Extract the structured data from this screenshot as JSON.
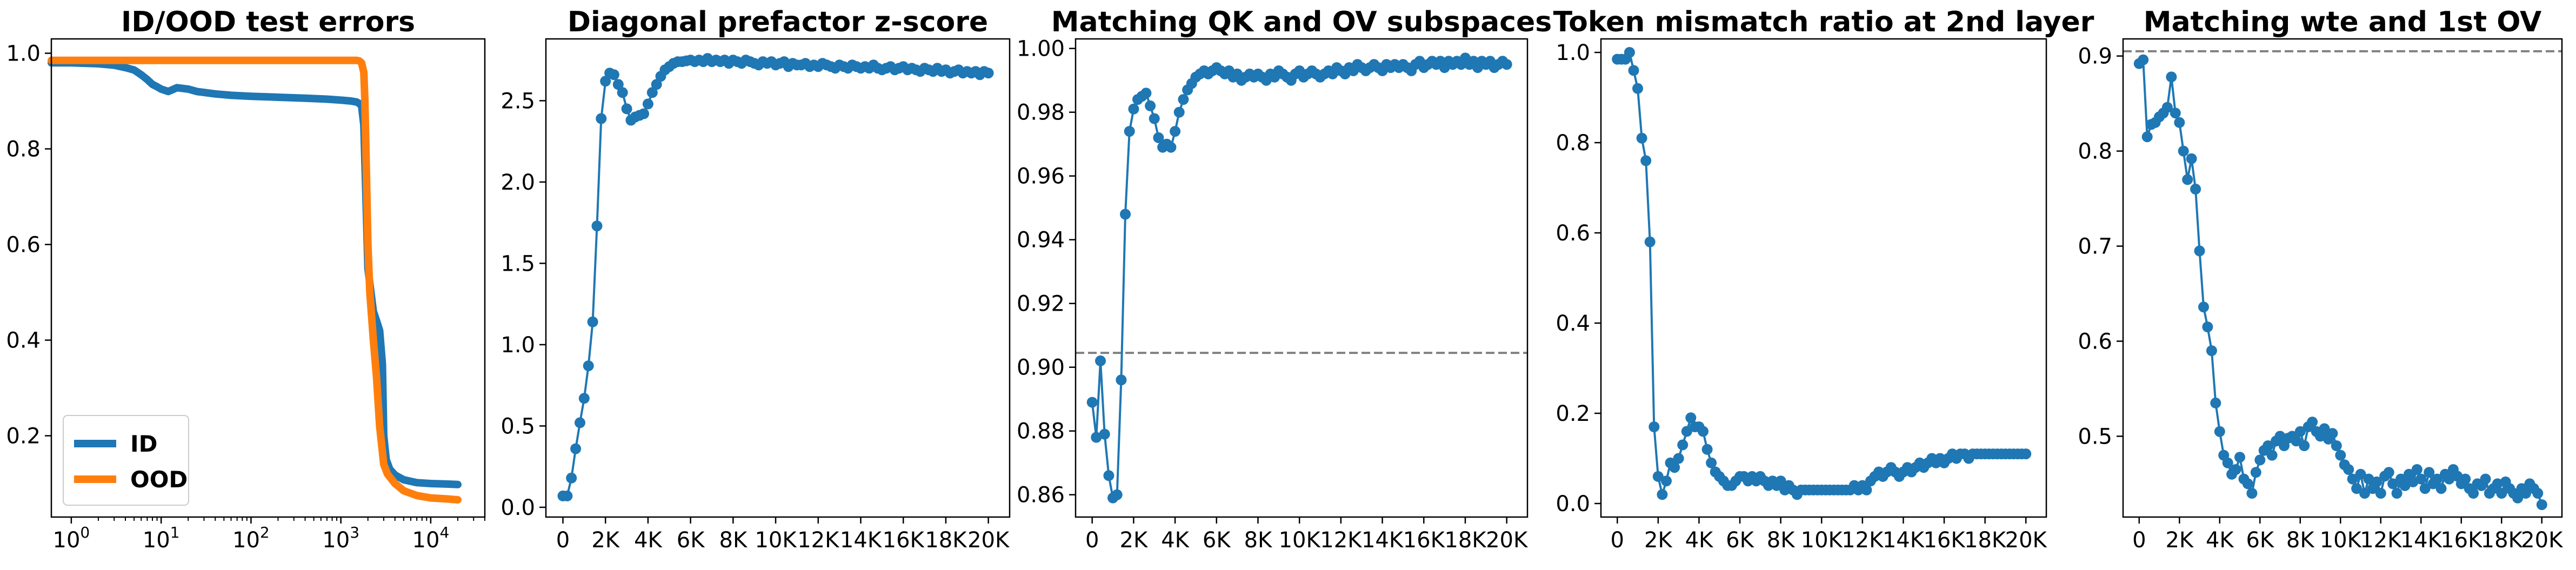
{
  "figure": {
    "colors": {
      "blue": "#1f77b4",
      "orange": "#ff7f0e",
      "refline": "#808080"
    }
  },
  "chart_data": [
    {
      "type": "line",
      "title": "ID/OOD test errors",
      "xscale": "log",
      "xlim": [
        0.6,
        40000
      ],
      "ylim": [
        0.03,
        1.03
      ],
      "xticks": [
        {
          "value": 1,
          "base": "10",
          "exp": "0"
        },
        {
          "value": 10,
          "base": "10",
          "exp": "1"
        },
        {
          "value": 100,
          "base": "10",
          "exp": "2"
        },
        {
          "value": 1000,
          "base": "10",
          "exp": "3"
        },
        {
          "value": 10000,
          "base": "10",
          "exp": "4"
        }
      ],
      "yticks": [
        {
          "value": 0.2,
          "label": "0.2"
        },
        {
          "value": 0.4,
          "label": "0.4"
        },
        {
          "value": 0.6,
          "label": "0.6"
        },
        {
          "value": 0.8,
          "label": "0.8"
        },
        {
          "value": 1.0,
          "label": "1.0"
        }
      ],
      "legend": {
        "placement": "lower-left"
      },
      "series": [
        {
          "name": "ID",
          "color": "#1f77b4",
          "x": [
            0.6,
            1,
            2,
            3,
            4,
            5,
            6,
            7,
            8,
            9,
            10,
            12,
            15,
            20,
            25,
            30,
            40,
            60,
            100,
            200,
            400,
            700,
            1000,
            1300,
            1500,
            1600,
            1700,
            1800,
            1900,
            2000,
            2300,
            2500,
            2700,
            2900,
            3000,
            3200,
            3500,
            4000,
            5000,
            7000,
            10000,
            15000,
            20000
          ],
          "y": [
            0.98,
            0.98,
            0.978,
            0.975,
            0.97,
            0.965,
            0.955,
            0.945,
            0.935,
            0.93,
            0.925,
            0.92,
            0.928,
            0.925,
            0.92,
            0.918,
            0.915,
            0.912,
            0.91,
            0.908,
            0.906,
            0.904,
            0.902,
            0.9,
            0.898,
            0.895,
            0.89,
            0.85,
            0.7,
            0.55,
            0.46,
            0.44,
            0.42,
            0.35,
            0.2,
            0.15,
            0.13,
            0.118,
            0.108,
            0.102,
            0.1,
            0.099,
            0.098
          ]
        },
        {
          "name": "OOD",
          "color": "#ff7f0e",
          "x": [
            0.6,
            1,
            10,
            100,
            500,
            1000,
            1300,
            1500,
            1600,
            1700,
            1800,
            1850,
            1900,
            2000,
            2100,
            2300,
            2500,
            2700,
            3000,
            3300,
            4000,
            5000,
            7000,
            10000,
            15000,
            20000
          ],
          "y": [
            0.985,
            0.985,
            0.985,
            0.985,
            0.985,
            0.985,
            0.985,
            0.985,
            0.984,
            0.98,
            0.96,
            0.9,
            0.8,
            0.6,
            0.5,
            0.4,
            0.32,
            0.22,
            0.14,
            0.12,
            0.1,
            0.085,
            0.075,
            0.07,
            0.068,
            0.066
          ]
        }
      ]
    },
    {
      "type": "line",
      "title": "Diagonal prefactor z-score",
      "xlim": [
        -800,
        21000
      ],
      "ylim": [
        -0.06,
        2.88
      ],
      "xticks": [
        {
          "value": 0,
          "label": "0"
        },
        {
          "value": 2000,
          "label": "2K"
        },
        {
          "value": 4000,
          "label": "4K"
        },
        {
          "value": 6000,
          "label": "6K"
        },
        {
          "value": 8000,
          "label": "8K"
        },
        {
          "value": 10000,
          "label": "10K"
        },
        {
          "value": 12000,
          "label": "12K"
        },
        {
          "value": 14000,
          "label": "14K"
        },
        {
          "value": 16000,
          "label": "16K"
        },
        {
          "value": 18000,
          "label": "18K"
        },
        {
          "value": 20000,
          "label": "20K"
        }
      ],
      "yticks": [
        {
          "value": 0.0,
          "label": "0.0"
        },
        {
          "value": 0.5,
          "label": "0.5"
        },
        {
          "value": 1.0,
          "label": "1.0"
        },
        {
          "value": 1.5,
          "label": "1.5"
        },
        {
          "value": 2.0,
          "label": "2.0"
        },
        {
          "value": 2.5,
          "label": "2.5"
        }
      ],
      "series": [
        {
          "color": "#1f77b4",
          "markers": true,
          "x_start": 0,
          "x_step": 200,
          "y": [
            0.07,
            0.07,
            0.18,
            0.36,
            0.52,
            0.67,
            0.87,
            1.14,
            1.73,
            2.39,
            2.62,
            2.67,
            2.66,
            2.6,
            2.55,
            2.45,
            2.38,
            2.4,
            2.41,
            2.42,
            2.48,
            2.55,
            2.6,
            2.65,
            2.69,
            2.71,
            2.73,
            2.74,
            2.74,
            2.745,
            2.75,
            2.74,
            2.75,
            2.74,
            2.76,
            2.74,
            2.75,
            2.74,
            2.75,
            2.73,
            2.75,
            2.74,
            2.73,
            2.75,
            2.74,
            2.73,
            2.72,
            2.74,
            2.73,
            2.74,
            2.72,
            2.73,
            2.74,
            2.71,
            2.73,
            2.72,
            2.72,
            2.73,
            2.71,
            2.72,
            2.71,
            2.73,
            2.72,
            2.71,
            2.7,
            2.72,
            2.71,
            2.7,
            2.72,
            2.71,
            2.7,
            2.71,
            2.7,
            2.72,
            2.7,
            2.69,
            2.7,
            2.71,
            2.69,
            2.7,
            2.71,
            2.69,
            2.7,
            2.69,
            2.68,
            2.7,
            2.69,
            2.68,
            2.7,
            2.68,
            2.69,
            2.67,
            2.68,
            2.69,
            2.67,
            2.68,
            2.67,
            2.68,
            2.66,
            2.68,
            2.67
          ]
        }
      ]
    },
    {
      "type": "line",
      "title": "Matching QK and OV subspaces",
      "xlim": [
        -800,
        21000
      ],
      "ylim": [
        0.853,
        1.003
      ],
      "reference_line": 0.9045,
      "xticks": [
        {
          "value": 0,
          "label": "0"
        },
        {
          "value": 2000,
          "label": "2K"
        },
        {
          "value": 4000,
          "label": "4K"
        },
        {
          "value": 6000,
          "label": "6K"
        },
        {
          "value": 8000,
          "label": "8K"
        },
        {
          "value": 10000,
          "label": "10K"
        },
        {
          "value": 12000,
          "label": "12K"
        },
        {
          "value": 14000,
          "label": "14K"
        },
        {
          "value": 16000,
          "label": "16K"
        },
        {
          "value": 18000,
          "label": "18K"
        },
        {
          "value": 20000,
          "label": "20K"
        }
      ],
      "yticks": [
        {
          "value": 0.86,
          "label": "0.86"
        },
        {
          "value": 0.88,
          "label": "0.88"
        },
        {
          "value": 0.9,
          "label": "0.90"
        },
        {
          "value": 0.92,
          "label": "0.92"
        },
        {
          "value": 0.94,
          "label": "0.94"
        },
        {
          "value": 0.96,
          "label": "0.96"
        },
        {
          "value": 0.98,
          "label": "0.98"
        },
        {
          "value": 1.0,
          "label": "1.00"
        }
      ],
      "series": [
        {
          "color": "#1f77b4",
          "markers": true,
          "x_start": 0,
          "x_step": 200,
          "y": [
            0.889,
            0.878,
            0.902,
            0.879,
            0.866,
            0.859,
            0.86,
            0.896,
            0.948,
            0.974,
            0.981,
            0.984,
            0.985,
            0.986,
            0.982,
            0.978,
            0.972,
            0.969,
            0.97,
            0.969,
            0.974,
            0.98,
            0.984,
            0.987,
            0.989,
            0.991,
            0.992,
            0.993,
            0.992,
            0.993,
            0.994,
            0.993,
            0.992,
            0.993,
            0.991,
            0.992,
            0.99,
            0.991,
            0.992,
            0.991,
            0.992,
            0.991,
            0.99,
            0.992,
            0.991,
            0.993,
            0.992,
            0.991,
            0.99,
            0.992,
            0.993,
            0.991,
            0.992,
            0.993,
            0.992,
            0.991,
            0.992,
            0.993,
            0.992,
            0.994,
            0.993,
            0.992,
            0.994,
            0.993,
            0.995,
            0.994,
            0.993,
            0.994,
            0.995,
            0.994,
            0.993,
            0.995,
            0.994,
            0.995,
            0.994,
            0.995,
            0.994,
            0.993,
            0.995,
            0.996,
            0.994,
            0.995,
            0.996,
            0.995,
            0.996,
            0.994,
            0.996,
            0.995,
            0.996,
            0.995,
            0.997,
            0.995,
            0.996,
            0.994,
            0.996,
            0.995,
            0.996,
            0.994,
            0.995,
            0.996,
            0.995
          ]
        }
      ]
    },
    {
      "type": "line",
      "title": "Token mismatch ratio at 2nd layer",
      "xlim": [
        -800,
        21000
      ],
      "ylim": [
        -0.03,
        1.03
      ],
      "xticks": [
        {
          "value": 0,
          "label": "0"
        },
        {
          "value": 2000,
          "label": "2K"
        },
        {
          "value": 4000,
          "label": "4K"
        },
        {
          "value": 6000,
          "label": "6K"
        },
        {
          "value": 8000,
          "label": "8K"
        },
        {
          "value": 10000,
          "label": "10K"
        },
        {
          "value": 12000,
          "label": "12K"
        },
        {
          "value": 14000,
          "label": "14K"
        },
        {
          "value": 16000,
          "label": "16K"
        },
        {
          "value": 18000,
          "label": "18K"
        },
        {
          "value": 20000,
          "label": "20K"
        }
      ],
      "yticks": [
        {
          "value": 0.0,
          "label": "0.0"
        },
        {
          "value": 0.2,
          "label": "0.2"
        },
        {
          "value": 0.4,
          "label": "0.4"
        },
        {
          "value": 0.6,
          "label": "0.6"
        },
        {
          "value": 0.8,
          "label": "0.8"
        },
        {
          "value": 1.0,
          "label": "1.0"
        }
      ],
      "series": [
        {
          "color": "#1f77b4",
          "markers": true,
          "x_start": 0,
          "x_step": 200,
          "y": [
            0.985,
            0.985,
            0.985,
            1.0,
            0.96,
            0.92,
            0.81,
            0.76,
            0.58,
            0.17,
            0.06,
            0.02,
            0.05,
            0.09,
            0.08,
            0.1,
            0.13,
            0.16,
            0.19,
            0.17,
            0.17,
            0.16,
            0.12,
            0.09,
            0.07,
            0.06,
            0.05,
            0.04,
            0.04,
            0.05,
            0.06,
            0.06,
            0.05,
            0.06,
            0.05,
            0.06,
            0.05,
            0.04,
            0.05,
            0.04,
            0.05,
            0.03,
            0.04,
            0.03,
            0.02,
            0.03,
            0.03,
            0.03,
            0.03,
            0.03,
            0.03,
            0.03,
            0.03,
            0.03,
            0.03,
            0.03,
            0.03,
            0.03,
            0.04,
            0.03,
            0.04,
            0.03,
            0.05,
            0.06,
            0.07,
            0.06,
            0.07,
            0.08,
            0.07,
            0.06,
            0.07,
            0.08,
            0.07,
            0.08,
            0.09,
            0.08,
            0.09,
            0.1,
            0.09,
            0.1,
            0.09,
            0.1,
            0.11,
            0.1,
            0.11,
            0.11,
            0.1,
            0.11,
            0.11,
            0.11,
            0.11,
            0.11,
            0.11,
            0.11,
            0.11,
            0.11,
            0.11,
            0.11,
            0.11,
            0.11,
            0.11
          ]
        }
      ]
    },
    {
      "type": "line",
      "title": "Matching wte and 1st OV",
      "xlim": [
        -800,
        21000
      ],
      "ylim": [
        0.415,
        0.918
      ],
      "reference_line": 0.905,
      "xticks": [
        {
          "value": 0,
          "label": "0"
        },
        {
          "value": 2000,
          "label": "2K"
        },
        {
          "value": 4000,
          "label": "4K"
        },
        {
          "value": 6000,
          "label": "6K"
        },
        {
          "value": 8000,
          "label": "8K"
        },
        {
          "value": 10000,
          "label": "10K"
        },
        {
          "value": 12000,
          "label": "12K"
        },
        {
          "value": 14000,
          "label": "14K"
        },
        {
          "value": 16000,
          "label": "16K"
        },
        {
          "value": 18000,
          "label": "18K"
        },
        {
          "value": 20000,
          "label": "20K"
        }
      ],
      "yticks": [
        {
          "value": 0.5,
          "label": "0.5"
        },
        {
          "value": 0.6,
          "label": "0.6"
        },
        {
          "value": 0.7,
          "label": "0.7"
        },
        {
          "value": 0.8,
          "label": "0.8"
        },
        {
          "value": 0.9,
          "label": "0.9"
        }
      ],
      "series": [
        {
          "color": "#1f77b4",
          "markers": true,
          "x_start": 0,
          "x_step": 200,
          "y": [
            0.892,
            0.896,
            0.815,
            0.828,
            0.83,
            0.836,
            0.84,
            0.846,
            0.878,
            0.84,
            0.83,
            0.8,
            0.77,
            0.792,
            0.76,
            0.695,
            0.636,
            0.615,
            0.59,
            0.535,
            0.505,
            0.48,
            0.472,
            0.46,
            0.465,
            0.478,
            0.455,
            0.45,
            0.44,
            0.462,
            0.475,
            0.485,
            0.49,
            0.48,
            0.495,
            0.5,
            0.49,
            0.498,
            0.5,
            0.495,
            0.505,
            0.49,
            0.51,
            0.515,
            0.505,
            0.5,
            0.508,
            0.497,
            0.503,
            0.49,
            0.48,
            0.47,
            0.465,
            0.455,
            0.445,
            0.46,
            0.44,
            0.455,
            0.445,
            0.452,
            0.44,
            0.458,
            0.462,
            0.45,
            0.44,
            0.455,
            0.448,
            0.46,
            0.452,
            0.465,
            0.455,
            0.445,
            0.462,
            0.45,
            0.455,
            0.445,
            0.46,
            0.455,
            0.465,
            0.458,
            0.45,
            0.455,
            0.445,
            0.44,
            0.45,
            0.448,
            0.455,
            0.44,
            0.445,
            0.45,
            0.44,
            0.452,
            0.445,
            0.44,
            0.435,
            0.445,
            0.44,
            0.45,
            0.445,
            0.44,
            0.428
          ]
        }
      ]
    }
  ]
}
